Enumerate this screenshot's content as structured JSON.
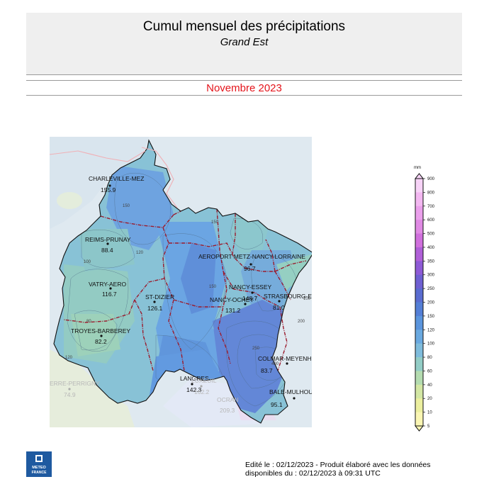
{
  "header": {
    "title": "Cumul mensuel des précipitations",
    "subtitle": "Grand Est",
    "period": "Novembre 2023",
    "period_color": "#e4141b"
  },
  "stations": [
    {
      "name": "CHARLEVILLE-MEZ",
      "value": "155.9"
    },
    {
      "name": "REIMS-PRUNAY",
      "value": "88.4"
    },
    {
      "name": "VATRY-AERO",
      "value": "116.7"
    },
    {
      "name": "ST-DIZIER",
      "value": "126.1"
    },
    {
      "name": "TROYES-BARBEREY",
      "value": "82.2"
    },
    {
      "name": "AEROPORT METZ-NANCY-LORRAINE",
      "value": "96.7"
    },
    {
      "name": "NANCY-ESSEY",
      "value": "148.7"
    },
    {
      "name": "NANCY-OCHEY",
      "value": "131.2"
    },
    {
      "name": "STRASBOURG-ENTZHEIM",
      "value": "81.0"
    },
    {
      "name": "COLMAR-MEYENHEIM",
      "value": "83.7"
    },
    {
      "name": "BALE-MULHOUSE",
      "value": "95.1"
    },
    {
      "name": "LANGRES",
      "value": "142.3"
    }
  ],
  "outside_stations": [
    {
      "name": "ERRE-PERRIGNY",
      "value": "74.9"
    },
    {
      "name": "LUXEUIL",
      "value": "162.2"
    },
    {
      "name": "OCRAN",
      "value": "209.3"
    }
  ],
  "legend": {
    "unit": "mm",
    "ticks": [
      "900",
      "800",
      "700",
      "600",
      "500",
      "400",
      "350",
      "300",
      "250",
      "200",
      "150",
      "120",
      "100",
      "80",
      "60",
      "40",
      "20",
      "10",
      "5"
    ],
    "colors": [
      "#f7d3f7",
      "#f3b8f1",
      "#eba0ec",
      "#e08ae4",
      "#d070dd",
      "#b060d8",
      "#8e5ad6",
      "#6f60d2",
      "#5a6cd0",
      "#547fd6",
      "#5b95dd",
      "#6aa9e0",
      "#7fbcdc",
      "#93cdc6",
      "#b4dcb0",
      "#d3e7a4",
      "#ecef9f",
      "#faf6b3"
    ]
  },
  "footer": {
    "line1": "Edité le : 02/12/2023 - Produit élaboré avec les données",
    "line2": "disponibles du : 02/12/2023 à 09:31 UTC",
    "logo_line1": "METEO",
    "logo_line2": "FRANCE"
  }
}
